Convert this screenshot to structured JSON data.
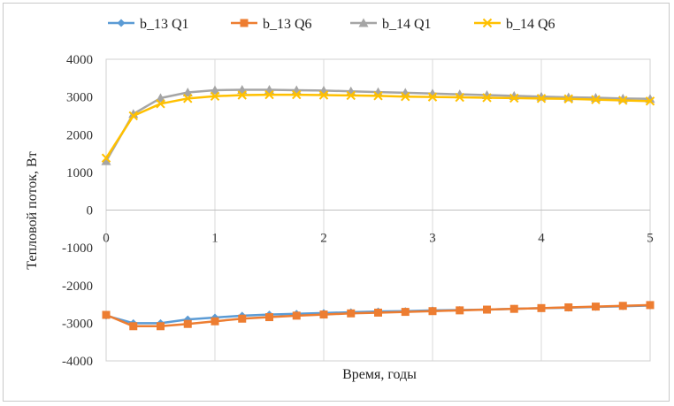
{
  "chart_data": {
    "type": "line",
    "title": "",
    "xlabel": "Время, годы",
    "ylabel": "Тепловой поток, Вт",
    "xlim": [
      0,
      5
    ],
    "ylim": [
      -4000,
      4000
    ],
    "x_ticks": [
      "0",
      "1",
      "2",
      "3",
      "4",
      "5"
    ],
    "y_ticks": [
      "4000",
      "3000",
      "2000",
      "1000",
      "0",
      "-1000",
      "-2000",
      "-3000",
      "-4000"
    ],
    "grid": "vertical",
    "legend_position": "top",
    "x": [
      0,
      0.25,
      0.5,
      0.75,
      1,
      1.25,
      1.5,
      1.75,
      2,
      2.25,
      2.5,
      2.75,
      3,
      3.25,
      3.5,
      3.75,
      4,
      4.25,
      4.5,
      4.75,
      5
    ],
    "series": [
      {
        "name": "b_13 Q1",
        "color": "#5b9bd5",
        "marker": "diamond",
        "values": [
          -2800,
          -3000,
          -3000,
          -2900,
          -2850,
          -2800,
          -2770,
          -2750,
          -2730,
          -2710,
          -2690,
          -2680,
          -2660,
          -2650,
          -2640,
          -2620,
          -2600,
          -2590,
          -2570,
          -2550,
          -2530
        ]
      },
      {
        "name": "b_13 Q6",
        "color": "#ed7d31",
        "marker": "square",
        "values": [
          -2780,
          -3080,
          -3080,
          -3020,
          -2950,
          -2880,
          -2840,
          -2800,
          -2770,
          -2740,
          -2720,
          -2700,
          -2680,
          -2660,
          -2640,
          -2620,
          -2600,
          -2580,
          -2560,
          -2540,
          -2520
        ]
      },
      {
        "name": "b_14 Q1",
        "color": "#a5a5a5",
        "marker": "triangle",
        "values": [
          1300,
          2550,
          2970,
          3120,
          3180,
          3190,
          3190,
          3180,
          3170,
          3150,
          3130,
          3110,
          3090,
          3070,
          3050,
          3030,
          3010,
          2990,
          2980,
          2960,
          2950
        ]
      },
      {
        "name": "b_14 Q6",
        "color": "#ffc000",
        "marker": "x",
        "values": [
          1380,
          2500,
          2820,
          2960,
          3020,
          3050,
          3060,
          3060,
          3050,
          3040,
          3030,
          3010,
          3000,
          2990,
          2980,
          2970,
          2960,
          2950,
          2930,
          2910,
          2890
        ]
      }
    ]
  }
}
